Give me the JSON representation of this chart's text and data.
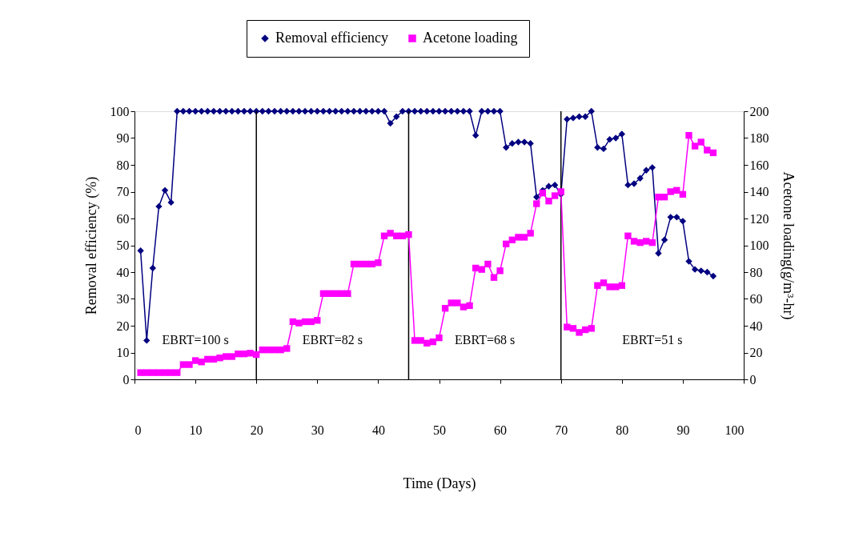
{
  "chart_data": {
    "type": "line",
    "xlabel": "Time (Days)",
    "ylabel": "Removal  efficiency (%)",
    "y2label": "Acetone  loading(g/m³-hr)",
    "xlim": [
      0,
      100
    ],
    "xticks": [
      0,
      10,
      20,
      30,
      40,
      50,
      60,
      70,
      80,
      90,
      100
    ],
    "ylim": [
      0,
      100
    ],
    "yticks": [
      0,
      10,
      20,
      30,
      40,
      50,
      60,
      70,
      80,
      90,
      100
    ],
    "y2lim": [
      0,
      200
    ],
    "y2ticks": [
      0,
      20,
      40,
      60,
      80,
      100,
      120,
      140,
      160,
      180,
      200
    ],
    "grid": false,
    "legend": "top",
    "line_style": "solid",
    "x": [
      1,
      2,
      3,
      4,
      5,
      6,
      7,
      8,
      9,
      10,
      11,
      12,
      13,
      14,
      15,
      16,
      17,
      18,
      19,
      20,
      21,
      22,
      23,
      24,
      25,
      26,
      27,
      28,
      29,
      30,
      31,
      32,
      33,
      34,
      35,
      36,
      37,
      38,
      39,
      40,
      41,
      42,
      43,
      44,
      45,
      46,
      47,
      48,
      49,
      50,
      51,
      52,
      53,
      54,
      55,
      56,
      57,
      58,
      59,
      60,
      61,
      62,
      63,
      64,
      65,
      66,
      67,
      68,
      69,
      70,
      71,
      72,
      73,
      74,
      75,
      76,
      77,
      78,
      79,
      80,
      81,
      82,
      83,
      84,
      85,
      86,
      87,
      88,
      89,
      90,
      91,
      92,
      93,
      94,
      95
    ],
    "series": [
      {
        "name": "Removal efficiency",
        "color": "#000080",
        "marker": "diamond",
        "values": [
          48,
          14.5,
          41.5,
          64.5,
          70.5,
          66,
          100,
          100,
          100,
          100,
          100,
          100,
          100,
          100,
          100,
          100,
          100,
          100,
          100,
          100,
          100,
          100,
          100,
          100,
          100,
          100,
          100,
          100,
          100,
          100,
          100,
          100,
          100,
          100,
          100,
          100,
          100,
          100,
          100,
          100,
          100,
          95.5,
          98,
          100,
          100,
          100,
          100,
          100,
          100,
          100,
          100,
          100,
          100,
          100,
          100,
          91,
          100,
          100,
          100,
          100,
          86.5,
          88,
          88.5,
          88.5,
          88,
          68,
          70.5,
          72,
          72.5,
          69,
          97,
          97.5,
          98,
          98,
          100,
          86.5,
          86,
          89.5,
          90,
          91.5,
          72.5,
          73,
          75,
          78,
          79,
          47,
          52,
          60.5,
          60.5,
          59,
          44,
          41,
          40.5,
          40,
          38.5
        ]
      },
      {
        "name": "Acetone loading",
        "color": "#ff00ff",
        "marker": "square",
        "axis": "y2",
        "values": [
          5,
          5,
          5,
          5,
          5,
          5,
          5,
          11,
          11,
          14,
          13,
          15,
          15,
          16,
          17,
          17,
          19,
          19,
          19.5,
          18.5,
          22,
          22,
          22,
          22,
          23,
          43,
          42,
          43,
          43,
          44,
          64,
          64,
          64,
          64,
          64,
          86,
          86,
          86,
          86,
          87,
          107,
          109,
          107,
          107,
          108,
          29,
          29,
          27,
          28,
          31,
          53,
          57,
          57,
          54,
          55,
          83,
          82,
          86,
          76,
          81,
          101,
          104,
          106,
          106,
          109,
          131,
          139,
          133,
          137,
          140,
          39,
          38,
          35,
          37,
          38,
          70,
          72,
          69,
          69,
          70,
          107,
          103,
          102,
          103,
          102,
          136,
          136,
          140,
          141,
          138,
          182,
          174,
          177,
          171,
          169
        ]
      }
    ],
    "ref_lines": [
      {
        "axis": "x",
        "value": 20,
        "color": "#000000"
      },
      {
        "axis": "x",
        "value": 45,
        "color": "#000000"
      },
      {
        "axis": "x",
        "value": 70,
        "color": "#000000"
      }
    ],
    "annotations": [
      "EBRT=100 s",
      "EBRT=82 s",
      "EBRT=68 s",
      "EBRT=51 s"
    ]
  }
}
